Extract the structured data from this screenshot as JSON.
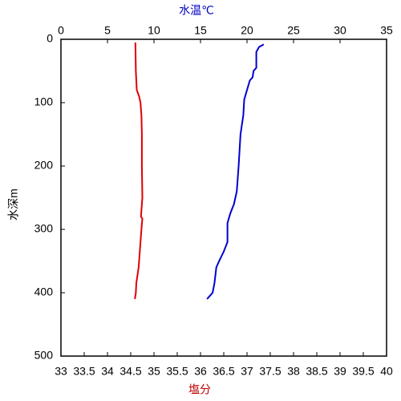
{
  "chart_data": {
    "type": "profile",
    "x_label": "塩分",
    "x_label_color": "#c00000",
    "x2_label": "水温℃",
    "x2_label_color": "#0000c0",
    "y_label": "水深m",
    "xlim": [
      33,
      40
    ],
    "xticks": [
      33,
      33.5,
      34,
      34.5,
      35,
      35.5,
      36,
      36.5,
      37,
      37.5,
      38,
      38.5,
      39,
      39.5,
      40
    ],
    "x2lim": [
      0,
      35
    ],
    "x2ticks": [
      0,
      5,
      10,
      15,
      20,
      25,
      30,
      35
    ],
    "ylim": [
      0,
      500
    ],
    "yticks": [
      0,
      100,
      200,
      300,
      400,
      500
    ],
    "y_inverted": true,
    "series": [
      {
        "color": "#e00000",
        "axis": "x",
        "depth": [
          5,
          50,
          80,
          90,
          100,
          120,
          150,
          200,
          250,
          280,
          283,
          300,
          330,
          360,
          385,
          400,
          410
        ],
        "values": [
          34.6,
          34.61,
          34.63,
          34.68,
          34.71,
          34.73,
          34.74,
          34.74,
          34.75,
          34.72,
          34.75,
          34.73,
          34.7,
          34.67,
          34.62,
          34.61,
          34.59
        ]
      },
      {
        "color": "#0000d0",
        "axis": "x2",
        "depth": [
          8,
          12,
          20,
          45,
          50,
          60,
          65,
          75,
          95,
          120,
          150,
          200,
          240,
          260,
          275,
          290,
          320,
          335,
          350,
          360,
          385,
          400,
          405,
          410
        ],
        "values": [
          21.8,
          21.3,
          21.0,
          21.0,
          20.7,
          20.6,
          20.3,
          20.1,
          19.7,
          19.6,
          19.3,
          19.1,
          18.9,
          18.6,
          18.2,
          17.9,
          17.9,
          17.5,
          17.0,
          16.7,
          16.5,
          16.3,
          16.0,
          15.7
        ]
      }
    ]
  }
}
